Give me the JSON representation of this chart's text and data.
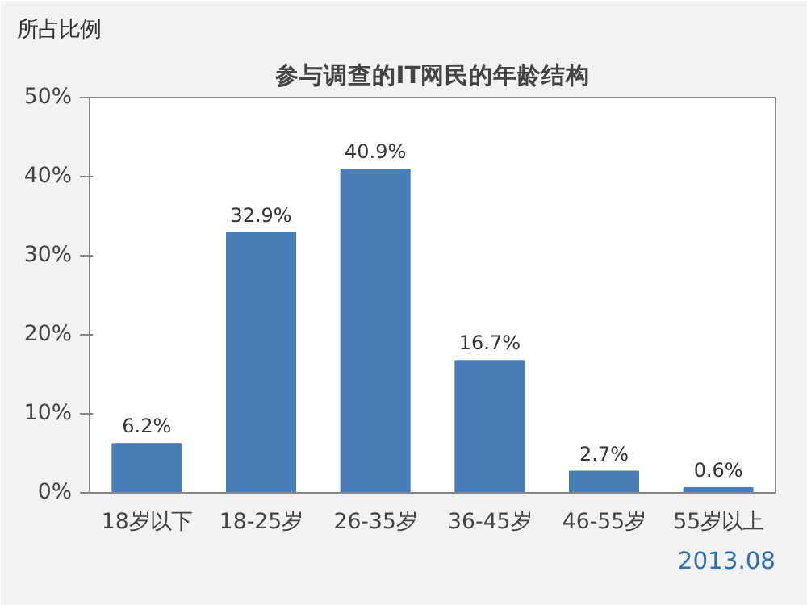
{
  "chart_data": {
    "type": "bar",
    "title": "参与调查的IT网民的年龄结构",
    "ylabel": "所占比例",
    "categories": [
      "18岁以下",
      "18-25岁",
      "26-35岁",
      "36-45岁",
      "46-55岁",
      "55岁以上"
    ],
    "values": [
      6.2,
      32.9,
      40.9,
      16.7,
      2.7,
      0.6
    ],
    "value_labels": [
      "6.2%",
      "32.9%",
      "40.9%",
      "16.7%",
      "2.7%",
      "0.6%"
    ],
    "color": "#4a7ebb",
    "ylim": [
      0,
      50
    ],
    "yticks": [
      {
        "value": 0,
        "label": "0%"
      },
      {
        "value": 10,
        "label": "10%"
      },
      {
        "value": 20,
        "label": "20%"
      },
      {
        "value": 30,
        "label": "30%"
      },
      {
        "value": 40,
        "label": "40%"
      },
      {
        "value": 50,
        "label": "50%"
      }
    ],
    "grid": false,
    "annotations": [
      "2013.08"
    ]
  }
}
